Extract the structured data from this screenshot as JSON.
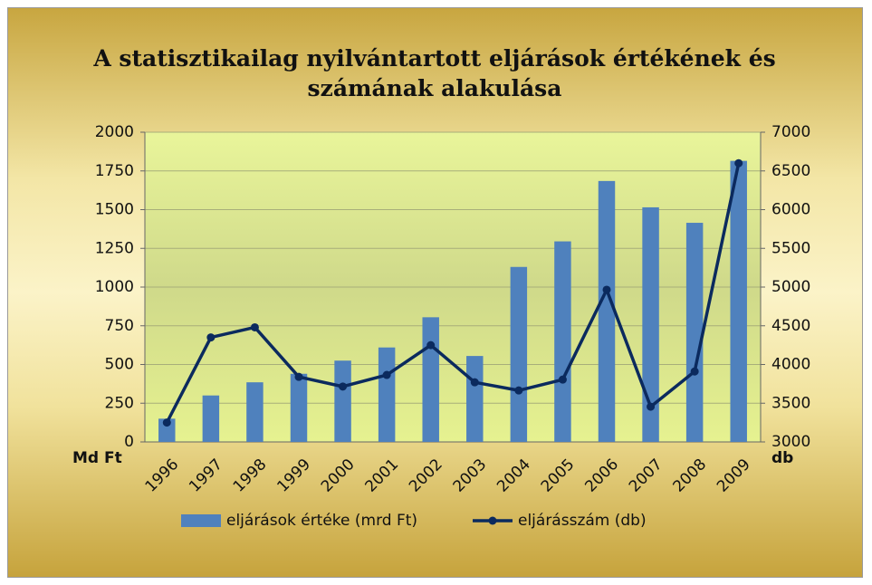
{
  "chart_data": {
    "type": "bar",
    "title": "A statisztikailag nyilvántartott eljárások értékének és számának alakulása",
    "y_label": "Md Ft",
    "y2_label": "db",
    "categories": [
      "1996",
      "1997",
      "1998",
      "1999",
      "2000",
      "2001",
      "2002",
      "2003",
      "2004",
      "2005",
      "2006",
      "2007",
      "2008",
      "2009"
    ],
    "series": [
      {
        "name": "eljárások értéke (mrd Ft)",
        "type": "bar",
        "color": "#4f81bd",
        "values": [
          150,
          300,
          385,
          440,
          525,
          610,
          805,
          555,
          1130,
          1295,
          1685,
          1515,
          1415,
          1815
        ]
      },
      {
        "name": "eljárásszám (db)",
        "type": "line",
        "axis": "y2",
        "color": "#0b2a5e",
        "values": [
          3250,
          4350,
          4480,
          3840,
          3715,
          3865,
          4250,
          3770,
          3665,
          3805,
          4965,
          3455,
          3910,
          6600
        ]
      }
    ],
    "ylim": [
      0,
      2000
    ],
    "yticks": [
      0,
      250,
      500,
      750,
      1000,
      1250,
      1500,
      1750,
      2000
    ],
    "y2lim": [
      3000,
      7000
    ],
    "y2ticks": [
      3000,
      3500,
      4000,
      4500,
      5000,
      5500,
      6000,
      6500,
      7000
    ],
    "grid": true,
    "legend": "bottom"
  }
}
